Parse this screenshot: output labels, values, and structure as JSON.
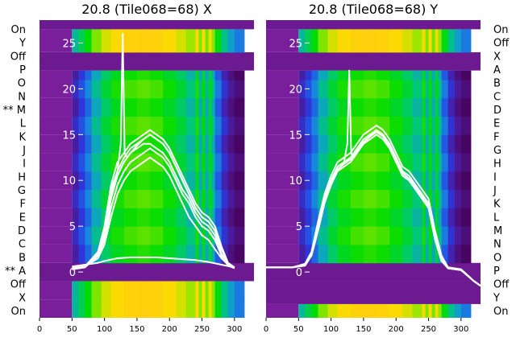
{
  "chart_data": [
    {
      "type": "heatmap",
      "title": "20.8 (Tile068=68) X",
      "xlim": [
        0,
        330
      ],
      "xticks": [
        0,
        50,
        100,
        150,
        200,
        250,
        300
      ],
      "ylim": [
        -5,
        27.5
      ],
      "yticks": [
        0,
        5,
        10,
        15,
        20,
        25
      ],
      "row_labels": [
        "On",
        "Y",
        "Off",
        "P",
        "O",
        "N",
        "** M",
        "L",
        "K",
        "J",
        "I",
        "H",
        "G",
        "F",
        "E",
        "D",
        "C",
        "B",
        "** A",
        "Off",
        "X",
        "On"
      ],
      "band_edges": [
        -5,
        -3,
        -1,
        1,
        3,
        5,
        7,
        9,
        11,
        13,
        15,
        17,
        19,
        21,
        22,
        24,
        26.5,
        27.5
      ],
      "band_kinds": [
        "on",
        "on",
        "off",
        "tile",
        "tile",
        "tile",
        "tile",
        "tile",
        "tile",
        "tile",
        "tile",
        "tile",
        "tile",
        "tile",
        "off",
        "on",
        "off"
      ],
      "column_edges": [
        50,
        60,
        70,
        80,
        95,
        110,
        130,
        150,
        170,
        190,
        210,
        225,
        240,
        245,
        250,
        255,
        260,
        265,
        270,
        280,
        290,
        300,
        315
      ],
      "column_levels": [
        0.18,
        0.26,
        0.34,
        0.45,
        0.55,
        0.62,
        0.66,
        0.68,
        0.66,
        0.61,
        0.55,
        0.48,
        0.62,
        0.45,
        0.6,
        0.44,
        0.58,
        0.46,
        0.32,
        0.2,
        0.12,
        0.06
      ],
      "series": [
        {
          "x": [
            50,
            70,
            90,
            100,
            110,
            120,
            130,
            140,
            150,
            160,
            170,
            180,
            190,
            200,
            210,
            220,
            230,
            240,
            250,
            260,
            270,
            280,
            290,
            300
          ],
          "y": [
            0.4,
            0.6,
            1.5,
            3,
            6,
            8.5,
            10,
            11,
            11.5,
            12,
            12.5,
            12,
            11.5,
            10.5,
            9,
            7.5,
            6,
            5,
            4,
            3.5,
            2.5,
            1.5,
            0.8,
            0.5
          ]
        },
        {
          "x": [
            50,
            70,
            90,
            100,
            110,
            120,
            130,
            140,
            150,
            160,
            170,
            180,
            190,
            200,
            210,
            220,
            230,
            240,
            250,
            260,
            270,
            280,
            290,
            300
          ],
          "y": [
            0.4,
            0.6,
            2,
            4.5,
            9,
            11,
            12.5,
            13.5,
            14,
            14.5,
            15,
            14.5,
            14,
            13,
            11.5,
            10,
            8.5,
            7,
            6,
            5.5,
            4.5,
            2.5,
            1,
            0.5
          ]
        },
        {
          "x": [
            50,
            70,
            90,
            100,
            110,
            120,
            130,
            140,
            150,
            160,
            170,
            180,
            190,
            200,
            210,
            220,
            230,
            240,
            250,
            260,
            270,
            280,
            290,
            300
          ],
          "y": [
            0.4,
            0.6,
            2,
            4,
            8,
            10.5,
            12,
            13,
            13.5,
            14,
            14,
            13.5,
            13,
            12,
            10.5,
            9,
            8,
            6.5,
            5.5,
            5,
            4,
            2,
            0.8,
            0.4
          ]
        },
        {
          "x": [
            50,
            70,
            90,
            100,
            110,
            120,
            130,
            140,
            150,
            160,
            170,
            180,
            190,
            200,
            210,
            220,
            230,
            240,
            250,
            260,
            270,
            280,
            290,
            300
          ],
          "y": [
            0.3,
            0.5,
            1.8,
            3.5,
            7,
            9.5,
            11,
            12,
            12.5,
            13,
            13.5,
            13,
            12.5,
            11.5,
            10,
            8.5,
            7.5,
            6,
            5,
            4.5,
            3.5,
            1.8,
            0.7,
            0.4
          ]
        },
        {
          "x": [
            50,
            70,
            90,
            100,
            110,
            120,
            130,
            140,
            150,
            160,
            170,
            180,
            190,
            200,
            210,
            220,
            230,
            240,
            250,
            260,
            270,
            280,
            290,
            300
          ],
          "y": [
            0.4,
            0.6,
            2.2,
            5,
            9.5,
            12,
            13,
            14,
            14.5,
            15,
            15.5,
            15,
            14.5,
            13.5,
            12,
            10.5,
            9,
            7.5,
            6.5,
            6,
            5,
            2.8,
            1,
            0.5
          ]
        },
        {
          "x": [
            50,
            70,
            90,
            100,
            110,
            120,
            125,
            128,
            131,
            135,
            140,
            150,
            160,
            170,
            180,
            190,
            200,
            210,
            220,
            230,
            240,
            250,
            260,
            270,
            280,
            290,
            300
          ],
          "y": [
            0.4,
            0.6,
            2,
            4.5,
            8.5,
            11,
            14,
            26,
            13,
            12.5,
            13,
            13.8,
            14.5,
            15,
            14.5,
            14,
            13,
            11.5,
            10,
            8.5,
            7,
            6,
            5.5,
            4.5,
            2.5,
            1,
            0.5
          ]
        },
        {
          "x": [
            50,
            70,
            90,
            100,
            120,
            140,
            160,
            180,
            200,
            220,
            240,
            260,
            280,
            300
          ],
          "y": [
            0.6,
            0.8,
            1,
            1.2,
            1.5,
            1.6,
            1.6,
            1.6,
            1.5,
            1.4,
            1.3,
            1.1,
            0.8,
            0.5
          ]
        }
      ]
    },
    {
      "type": "heatmap",
      "title": "20.8 (Tile068=68) Y",
      "xlim": [
        0,
        330
      ],
      "xticks": [
        0,
        50,
        100,
        150,
        200,
        250,
        300
      ],
      "ylim": [
        -5,
        27.5
      ],
      "yticks": [
        0,
        5,
        10,
        15,
        20,
        25
      ],
      "row_labels": [
        "On",
        "Off",
        "X",
        "A",
        "B",
        "C",
        "D",
        "E",
        "F",
        "G",
        "H",
        "I",
        "J",
        "K",
        "L",
        "M",
        "N",
        "O",
        "P",
        "Off",
        "Y",
        "On"
      ],
      "band_edges": [
        -5,
        -3.5,
        -1,
        1,
        3,
        5,
        7,
        9,
        11,
        13,
        15,
        17,
        19,
        21,
        22,
        24,
        26.5,
        27.5
      ],
      "band_kinds": [
        "on",
        "off",
        "off",
        "tile",
        "tile",
        "tile",
        "tile",
        "tile",
        "tile",
        "tile",
        "tile",
        "tile",
        "tile",
        "tile",
        "off",
        "on",
        "off"
      ],
      "column_edges": [
        50,
        60,
        70,
        80,
        95,
        110,
        130,
        150,
        170,
        190,
        210,
        225,
        240,
        245,
        250,
        255,
        260,
        265,
        270,
        280,
        290,
        300,
        315
      ],
      "column_levels": [
        0.18,
        0.26,
        0.34,
        0.45,
        0.55,
        0.62,
        0.66,
        0.68,
        0.66,
        0.61,
        0.55,
        0.48,
        0.62,
        0.45,
        0.6,
        0.44,
        0.58,
        0.46,
        0.32,
        0.2,
        0.12,
        0.06
      ],
      "series": [
        {
          "x": [
            0,
            20,
            40,
            60,
            70,
            80,
            90,
            100,
            110,
            120,
            130,
            140,
            150,
            160,
            170,
            180,
            190,
            200,
            210,
            220,
            230,
            240,
            250,
            260,
            270,
            280,
            300,
            320,
            330
          ],
          "y": [
            0.5,
            0.5,
            0.5,
            0.8,
            2,
            5,
            8,
            10,
            11.5,
            12,
            12.5,
            13.5,
            14.5,
            15,
            15.5,
            15,
            14,
            12.5,
            11,
            10.5,
            9.5,
            8.5,
            7.5,
            4,
            1.5,
            0.5,
            0.3,
            -1,
            -1.5
          ]
        },
        {
          "x": [
            0,
            20,
            40,
            60,
            70,
            80,
            90,
            100,
            110,
            120,
            130,
            140,
            150,
            160,
            170,
            180,
            190,
            200,
            210,
            220,
            230,
            240,
            250,
            260,
            270,
            280,
            300,
            320,
            330
          ],
          "y": [
            0.5,
            0.5,
            0.5,
            0.7,
            1.8,
            4.5,
            7.5,
            9.5,
            11,
            11.5,
            12,
            13,
            14,
            14.5,
            15,
            14.5,
            13.5,
            12,
            10.5,
            10,
            9,
            8,
            7,
            3.5,
            1.2,
            0.4,
            0.2,
            -1,
            -1.5
          ]
        },
        {
          "x": [
            0,
            20,
            40,
            60,
            70,
            80,
            90,
            100,
            110,
            120,
            130,
            140,
            150,
            160,
            170,
            180,
            190,
            200,
            210,
            220,
            230,
            240,
            250,
            260,
            270,
            280,
            300,
            320,
            330
          ],
          "y": [
            0.5,
            0.5,
            0.5,
            0.9,
            2.2,
            5.5,
            8.5,
            10.5,
            12,
            12.5,
            13,
            14,
            15,
            15.5,
            16,
            15.5,
            14.5,
            13,
            11.5,
            11,
            10,
            9,
            8,
            4.5,
            1.8,
            0.5,
            0.3,
            -1,
            -1.5
          ]
        },
        {
          "x": [
            0,
            20,
            40,
            60,
            70,
            80,
            90,
            100,
            110,
            120,
            125,
            128,
            131,
            135,
            140,
            150,
            160,
            170,
            180,
            190,
            200,
            210,
            220,
            230,
            240,
            250,
            260,
            270,
            280,
            300,
            320,
            330
          ],
          "y": [
            0.5,
            0.5,
            0.5,
            0.8,
            2,
            5,
            8,
            10,
            11.5,
            12,
            14,
            22,
            13,
            12.5,
            13,
            14,
            14.5,
            15,
            14.5,
            13.5,
            12,
            10.5,
            10,
            9,
            8,
            7,
            4,
            1.5,
            0.5,
            0.3,
            -1,
            -1.5
          ]
        },
        {
          "x": [
            0,
            20,
            40,
            60,
            70,
            80,
            90,
            100,
            110,
            120,
            130,
            140,
            150,
            160,
            170,
            180,
            190,
            200,
            210,
            220,
            230,
            240,
            250,
            260,
            270,
            280,
            300,
            320,
            330
          ],
          "y": [
            0.5,
            0.5,
            0.5,
            0.7,
            1.9,
            4.8,
            7.8,
            9.8,
            11.2,
            11.8,
            12.3,
            13.2,
            14.2,
            14.8,
            15.3,
            14.8,
            13.8,
            12.3,
            10.8,
            10.2,
            9.2,
            8.2,
            7.2,
            3.8,
            1.4,
            0.4,
            0.2,
            -1,
            -1.5
          ]
        }
      ]
    }
  ]
}
